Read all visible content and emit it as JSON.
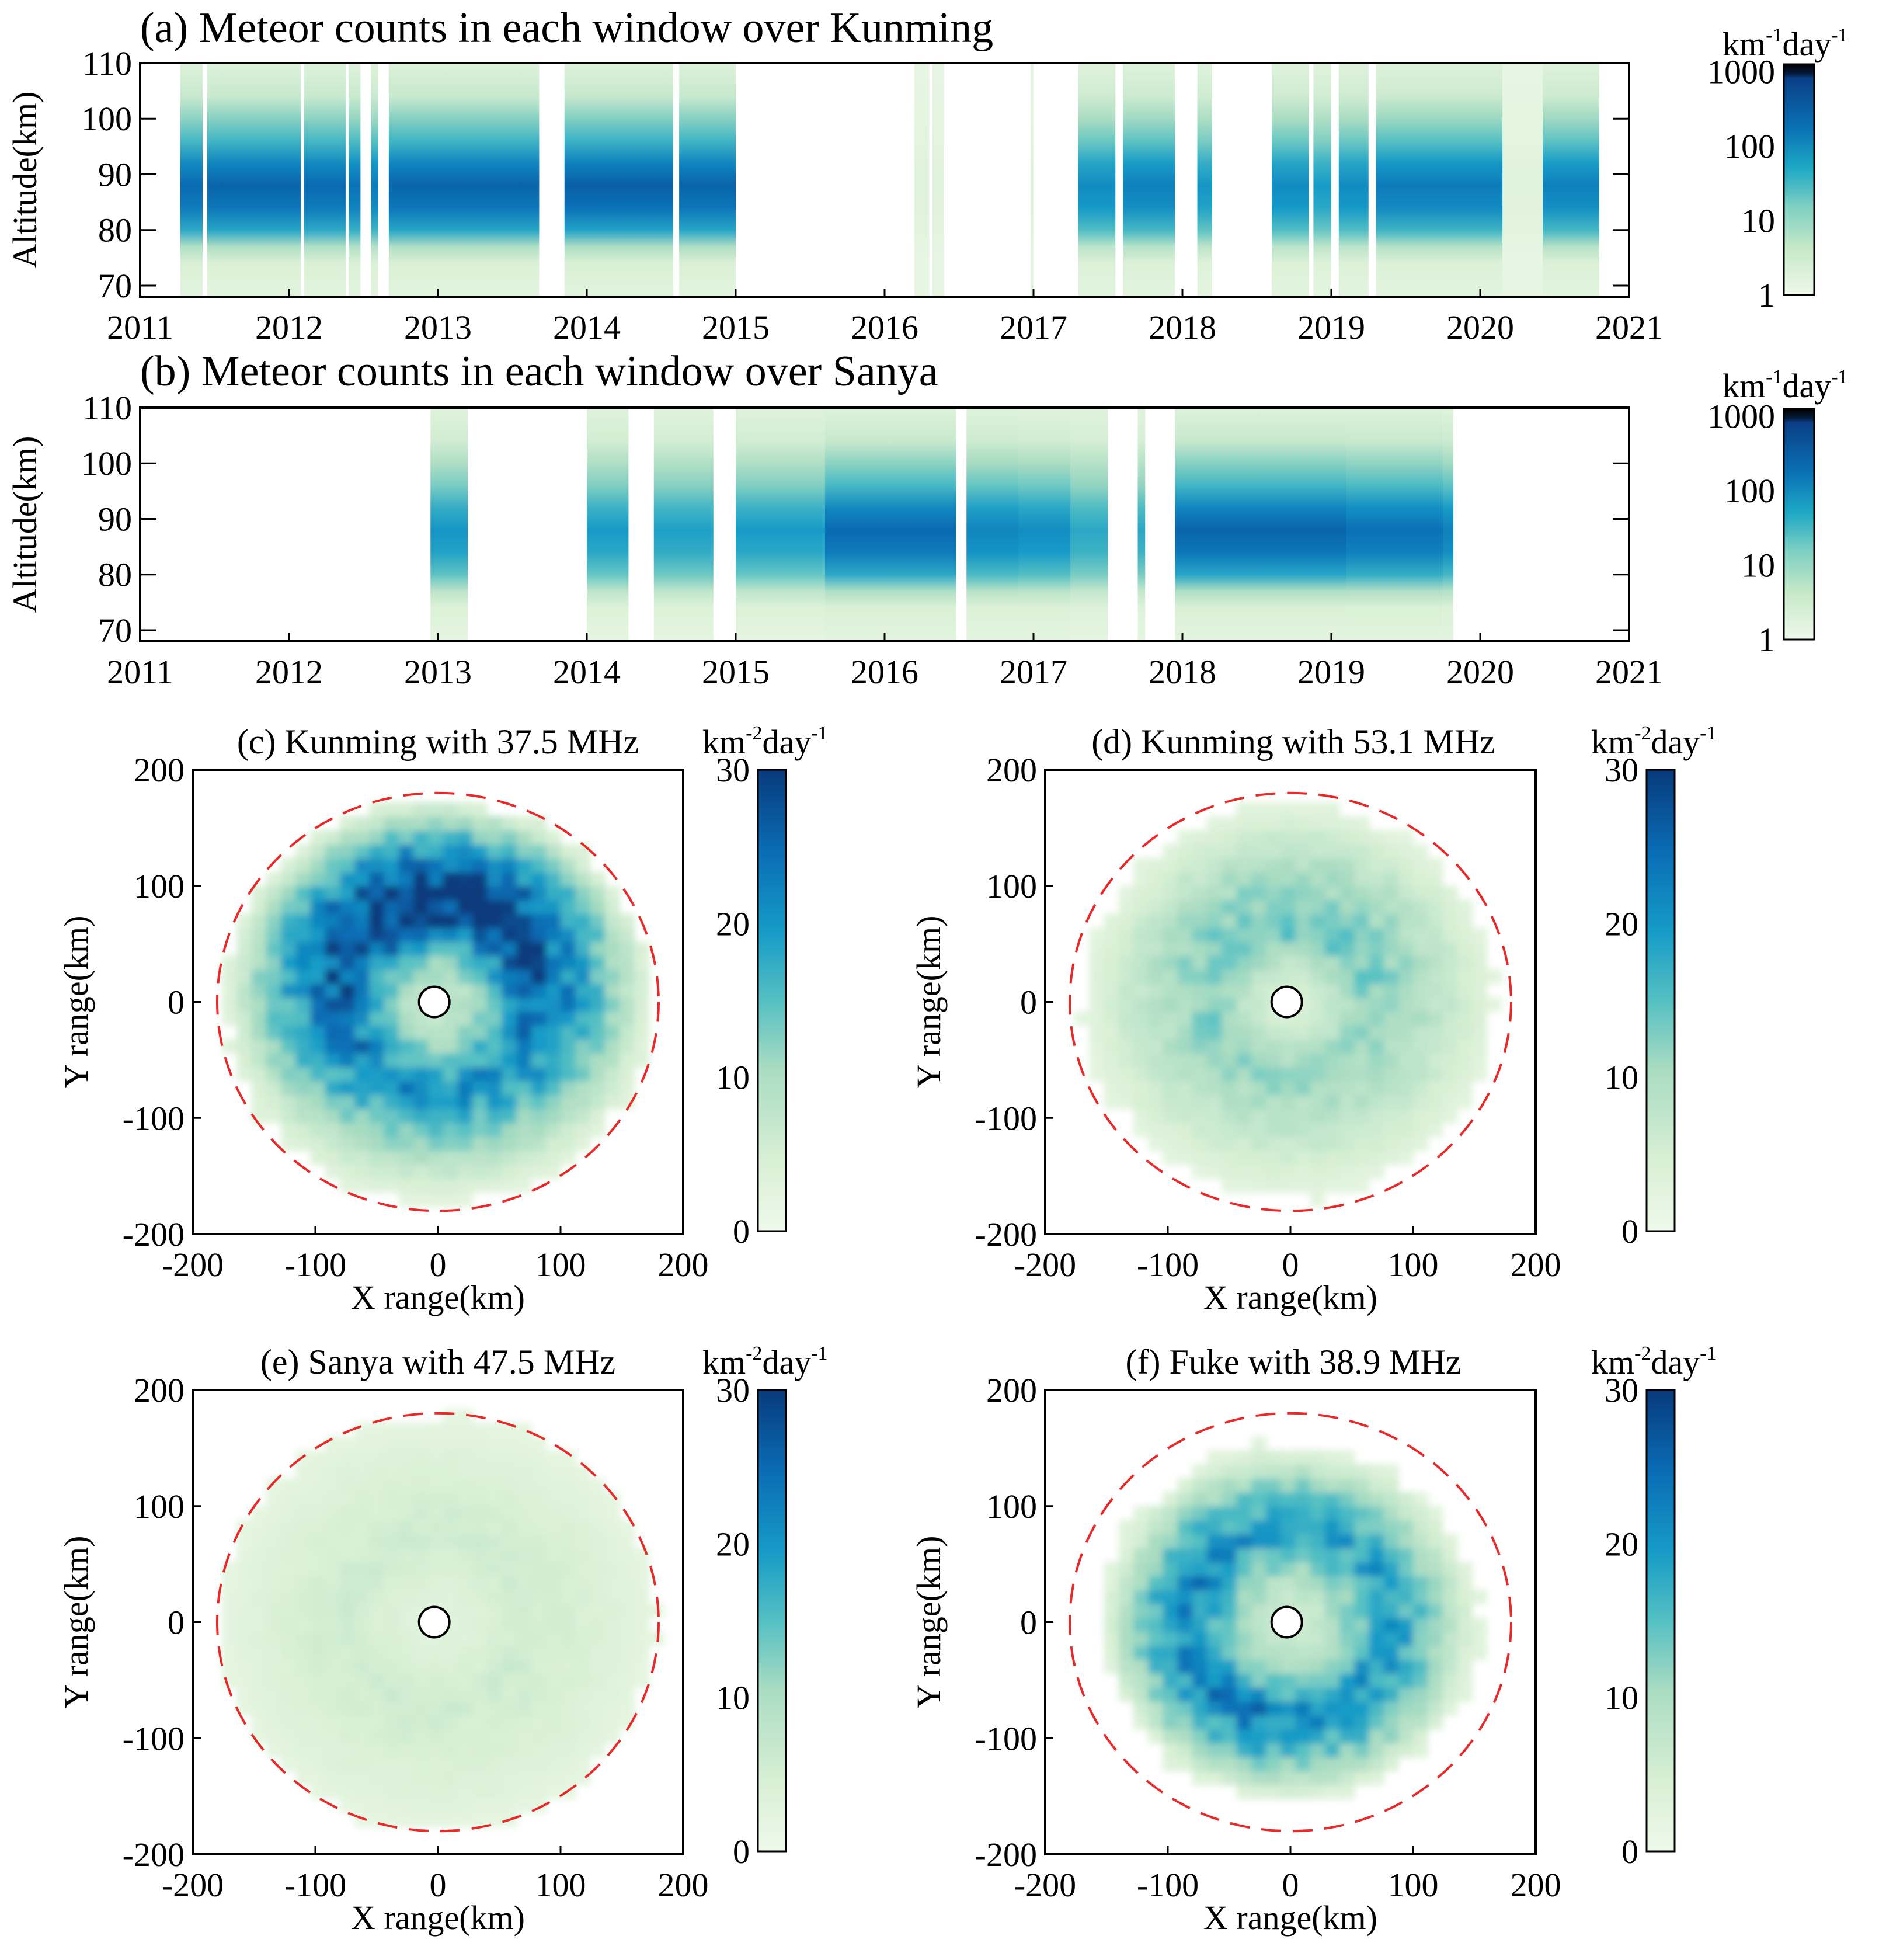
{
  "chart_data": [
    {
      "id": "a",
      "type": "heatmap",
      "title": "(a) Meteor counts in each window over Kunming",
      "xlabel": "",
      "ylabel": "Altitude(km)",
      "xlim": [
        2011,
        2021
      ],
      "ylim": [
        68,
        110
      ],
      "xticks": [
        "2011",
        "2012",
        "2013",
        "2014",
        "2015",
        "2016",
        "2017",
        "2018",
        "2019",
        "2020",
        "2021"
      ],
      "yticks": [
        "70",
        "80",
        "90",
        "100",
        "110"
      ],
      "colorbar": {
        "scale": "log",
        "ticks": [
          "1",
          "10",
          "100",
          "1000"
        ],
        "unit": "km",
        "unit_exp": "-1",
        "unit2": "day",
        "unit2_exp": "-1"
      },
      "peak_altitude_km": 88,
      "data_periods": [
        {
          "start": 2011.27,
          "end": 2011.42,
          "intensity": 0.78
        },
        {
          "start": 2011.45,
          "end": 2012.08,
          "intensity": 0.8
        },
        {
          "start": 2012.1,
          "end": 2012.38,
          "intensity": 0.78
        },
        {
          "start": 2012.4,
          "end": 2012.48,
          "intensity": 0.75
        },
        {
          "start": 2012.55,
          "end": 2012.6,
          "intensity": 0.72
        },
        {
          "start": 2012.67,
          "end": 2013.68,
          "intensity": 0.8
        },
        {
          "start": 2013.85,
          "end": 2014.58,
          "intensity": 0.82
        },
        {
          "start": 2014.62,
          "end": 2015.0,
          "intensity": 0.8
        },
        {
          "start": 2016.2,
          "end": 2016.3,
          "intensity": 0.05
        },
        {
          "start": 2016.32,
          "end": 2016.4,
          "intensity": 0.05
        },
        {
          "start": 2016.98,
          "end": 2017.0,
          "intensity": 0.05
        },
        {
          "start": 2017.3,
          "end": 2017.55,
          "intensity": 0.66
        },
        {
          "start": 2017.6,
          "end": 2017.95,
          "intensity": 0.7
        },
        {
          "start": 2018.1,
          "end": 2018.2,
          "intensity": 0.62
        },
        {
          "start": 2018.6,
          "end": 2018.85,
          "intensity": 0.66
        },
        {
          "start": 2018.88,
          "end": 2019.0,
          "intensity": 0.6
        },
        {
          "start": 2019.05,
          "end": 2019.25,
          "intensity": 0.66
        },
        {
          "start": 2019.3,
          "end": 2020.15,
          "intensity": 0.72
        },
        {
          "start": 2020.15,
          "end": 2020.42,
          "intensity": 0.05
        },
        {
          "start": 2020.42,
          "end": 2020.8,
          "intensity": 0.7
        }
      ]
    },
    {
      "id": "b",
      "type": "heatmap",
      "title": "(b) Meteor counts in each window over Sanya",
      "xlabel": "",
      "ylabel": "Altitude(km)",
      "xlim": [
        2011,
        2021
      ],
      "ylim": [
        68,
        110
      ],
      "xticks": [
        "2011",
        "2012",
        "2013",
        "2014",
        "2015",
        "2016",
        "2017",
        "2018",
        "2019",
        "2020",
        "2021"
      ],
      "yticks": [
        "70",
        "80",
        "90",
        "100",
        "110"
      ],
      "colorbar": {
        "scale": "log",
        "ticks": [
          "1",
          "10",
          "100",
          "1000"
        ],
        "unit": "km",
        "unit_exp": "-1",
        "unit2": "day",
        "unit2_exp": "-1"
      },
      "peak_altitude_km": 89,
      "data_periods": [
        {
          "start": 2012.95,
          "end": 2013.2,
          "intensity": 0.62
        },
        {
          "start": 2014.0,
          "end": 2014.28,
          "intensity": 0.6
        },
        {
          "start": 2014.45,
          "end": 2014.85,
          "intensity": 0.58
        },
        {
          "start": 2015.0,
          "end": 2015.6,
          "intensity": 0.6
        },
        {
          "start": 2015.6,
          "end": 2016.48,
          "intensity": 0.78
        },
        {
          "start": 2016.55,
          "end": 2016.9,
          "intensity": 0.68
        },
        {
          "start": 2016.9,
          "end": 2017.25,
          "intensity": 0.65
        },
        {
          "start": 2017.25,
          "end": 2017.5,
          "intensity": 0.55
        },
        {
          "start": 2017.7,
          "end": 2017.75,
          "intensity": 0.55
        },
        {
          "start": 2017.95,
          "end": 2019.1,
          "intensity": 0.8
        },
        {
          "start": 2019.1,
          "end": 2019.75,
          "intensity": 0.76
        },
        {
          "start": 2019.75,
          "end": 2019.82,
          "intensity": 0.7
        }
      ]
    },
    {
      "id": "c",
      "type": "heatmap",
      "title": "(c) Kunming with 37.5 MHz",
      "xlabel": "X range(km)",
      "ylabel": "Y range(km)",
      "xlim": [
        -200,
        200
      ],
      "ylim": [
        -200,
        200
      ],
      "xticks": [
        "-200",
        "-100",
        "0",
        "100",
        "200"
      ],
      "yticks": [
        "-200",
        "-100",
        "0",
        "100",
        "200"
      ],
      "colorbar": {
        "scale": "linear",
        "range": [
          0,
          30
        ],
        "ticks": [
          "0",
          "10",
          "20",
          "30"
        ],
        "unit": "km",
        "unit_exp": "-2",
        "unit2": "day",
        "unit2_exp": "-1"
      },
      "dashed_circle_radius_km": 180,
      "center_marker": "station",
      "ring_peak_density": 24,
      "inner_hole_radius_km": 35,
      "ring_radius_km": 75,
      "outer_radius_km": 170,
      "ring_asymmetry": {
        "direction": "north",
        "factor": 0.35
      }
    },
    {
      "id": "d",
      "type": "heatmap",
      "title": "(d) Kunming with 53.1 MHz",
      "xlabel": "X range(km)",
      "ylabel": "Y range(km)",
      "xlim": [
        -200,
        200
      ],
      "ylim": [
        -200,
        200
      ],
      "xticks": [
        "-200",
        "-100",
        "0",
        "100",
        "200"
      ],
      "yticks": [
        "-200",
        "-100",
        "0",
        "100",
        "200"
      ],
      "colorbar": {
        "scale": "linear",
        "range": [
          0,
          30
        ],
        "ticks": [
          "0",
          "10",
          "20",
          "30"
        ],
        "unit": "km",
        "unit_exp": "-2",
        "unit2": "day",
        "unit2_exp": "-1"
      },
      "dashed_circle_radius_km": 180,
      "center_marker": "station",
      "ring_peak_density": 11,
      "inner_hole_radius_km": 20,
      "ring_radius_km": 60,
      "outer_radius_km": 165,
      "ring_asymmetry": {
        "direction": "north",
        "factor": 0.2
      }
    },
    {
      "id": "e",
      "type": "heatmap",
      "title": "(e) Sanya with 47.5 MHz",
      "xlabel": "X range(km)",
      "ylabel": "Y range(km)",
      "xlim": [
        -200,
        200
      ],
      "ylim": [
        -200,
        200
      ],
      "xticks": [
        "-200",
        "-100",
        "0",
        "100",
        "200"
      ],
      "yticks": [
        "-200",
        "-100",
        "0",
        "100",
        "200"
      ],
      "colorbar": {
        "scale": "linear",
        "range": [
          0,
          30
        ],
        "ticks": [
          "0",
          "10",
          "20",
          "30"
        ],
        "unit": "km",
        "unit_exp": "-2",
        "unit2": "day",
        "unit2_exp": "-1"
      },
      "dashed_circle_radius_km": 180,
      "center_marker": "station",
      "ring_peak_density": 4,
      "inner_hole_radius_km": 10,
      "ring_radius_km": 70,
      "outer_radius_km": 175,
      "ring_asymmetry": {
        "direction": "none",
        "factor": 0
      }
    },
    {
      "id": "f",
      "type": "heatmap",
      "title": "(f) Fuke with 38.9 MHz",
      "xlabel": "X range(km)",
      "ylabel": "Y range(km)",
      "xlim": [
        -200,
        200
      ],
      "ylim": [
        -200,
        200
      ],
      "xticks": [
        "-200",
        "-100",
        "0",
        "100",
        "200"
      ],
      "yticks": [
        "-200",
        "-100",
        "0",
        "100",
        "200"
      ],
      "colorbar": {
        "scale": "linear",
        "range": [
          0,
          30
        ],
        "ticks": [
          "0",
          "10",
          "20",
          "30"
        ],
        "unit": "km",
        "unit_exp": "-2",
        "unit2": "day",
        "unit2_exp": "-1"
      },
      "dashed_circle_radius_km": 180,
      "center_marker": "station",
      "ring_peak_density": 19,
      "inner_hole_radius_km": 30,
      "ring_radius_km": 80,
      "outer_radius_km": 150,
      "ring_asymmetry": {
        "direction": "south-west",
        "factor": 0.15
      }
    }
  ]
}
